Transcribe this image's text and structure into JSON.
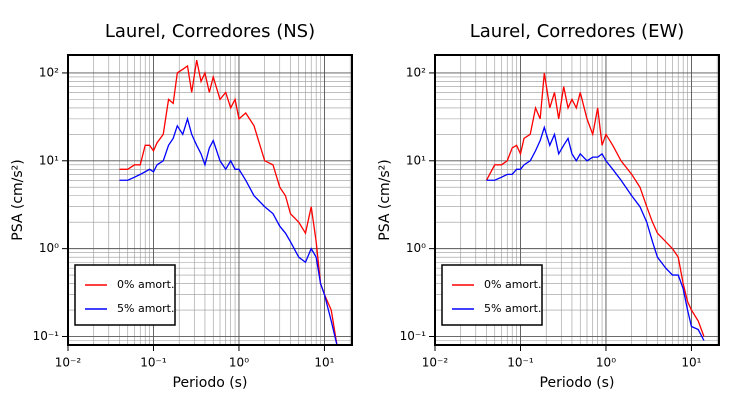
{
  "chart_data": [
    {
      "type": "line",
      "title": "Laurel, Corredores (NS)",
      "x_label": "Periodo (s)",
      "y_label": "PSA (cm/s²)",
      "x_scale": "log",
      "y_scale": "log",
      "grid": true,
      "minor_grid": true,
      "legend_position": "lower left",
      "xlim": [
        0.01,
        21
      ],
      "ylim": [
        0.08,
        160
      ],
      "xticks": [
        {
          "value": 0.01,
          "label": "10⁻²"
        },
        {
          "value": 0.1,
          "label": "10⁻¹"
        },
        {
          "value": 1,
          "label": "10⁰"
        },
        {
          "value": 10,
          "label": "10¹"
        }
      ],
      "yticks": [
        {
          "value": 0.1,
          "label": "10⁻¹"
        },
        {
          "value": 1,
          "label": "10⁰"
        },
        {
          "value": 10,
          "label": "10¹"
        },
        {
          "value": 100,
          "label": "10²"
        }
      ],
      "x": [
        0.04,
        0.05,
        0.06,
        0.07,
        0.08,
        0.09,
        0.1,
        0.11,
        0.13,
        0.15,
        0.17,
        0.19,
        0.22,
        0.25,
        0.28,
        0.32,
        0.36,
        0.4,
        0.45,
        0.5,
        0.6,
        0.7,
        0.8,
        0.9,
        1.0,
        1.2,
        1.5,
        2,
        2.5,
        3,
        3.5,
        4,
        5,
        6,
        7,
        8,
        9,
        10,
        12,
        14
      ],
      "series": [
        {
          "name": "0% amort.",
          "color": "#ff0000",
          "values": [
            8,
            8,
            9,
            9,
            15,
            15,
            13,
            16,
            20,
            50,
            45,
            100,
            110,
            120,
            60,
            140,
            80,
            100,
            60,
            90,
            50,
            60,
            40,
            50,
            30,
            35,
            25,
            10,
            9,
            5,
            4,
            2.5,
            2,
            1.5,
            3,
            1.2,
            0.4,
            0.3,
            0.2,
            0.08
          ]
        },
        {
          "name": "5% amort.",
          "color": "#0000ff",
          "values": [
            6,
            6,
            6.5,
            7,
            7.5,
            8,
            7.5,
            9,
            10,
            15,
            18,
            25,
            20,
            30,
            20,
            15,
            12,
            9,
            14,
            17,
            10,
            8,
            10,
            8,
            8,
            6,
            4,
            3,
            2.5,
            1.8,
            1.5,
            1.2,
            0.8,
            0.7,
            1.0,
            0.8,
            0.4,
            0.3,
            0.15,
            0.08
          ]
        }
      ]
    },
    {
      "type": "line",
      "title": "Laurel, Corredores (EW)",
      "x_label": "Periodo (s)",
      "y_label": "PSA (cm/s²)",
      "x_scale": "log",
      "y_scale": "log",
      "grid": true,
      "minor_grid": true,
      "legend_position": "lower left",
      "xlim": [
        0.01,
        21
      ],
      "ylim": [
        0.08,
        160
      ],
      "xticks": [
        {
          "value": 0.01,
          "label": "10⁻²"
        },
        {
          "value": 0.1,
          "label": "10⁻¹"
        },
        {
          "value": 1,
          "label": "10⁰"
        },
        {
          "value": 10,
          "label": "10¹"
        }
      ],
      "yticks": [
        {
          "value": 0.1,
          "label": "10⁻¹"
        },
        {
          "value": 1,
          "label": "10⁰"
        },
        {
          "value": 10,
          "label": "10¹"
        },
        {
          "value": 100,
          "label": "10²"
        }
      ],
      "x": [
        0.04,
        0.05,
        0.06,
        0.07,
        0.08,
        0.09,
        0.1,
        0.11,
        0.13,
        0.15,
        0.17,
        0.19,
        0.22,
        0.25,
        0.28,
        0.32,
        0.36,
        0.4,
        0.45,
        0.5,
        0.6,
        0.7,
        0.8,
        0.9,
        1.0,
        1.2,
        1.5,
        2,
        2.5,
        3,
        3.5,
        4,
        5,
        6,
        7,
        8,
        9,
        10,
        12,
        14
      ],
      "series": [
        {
          "name": "0% amort.",
          "color": "#ff0000",
          "values": [
            6,
            9,
            9,
            10,
            14,
            15,
            12,
            18,
            20,
            40,
            30,
            100,
            40,
            60,
            30,
            70,
            40,
            50,
            40,
            60,
            30,
            20,
            40,
            15,
            20,
            15,
            10,
            7,
            5,
            3,
            2,
            1.5,
            1.2,
            1.0,
            0.8,
            0.4,
            0.25,
            0.2,
            0.15,
            0.1
          ]
        },
        {
          "name": "5% amort.",
          "color": "#0000ff",
          "values": [
            6,
            6,
            6.5,
            7,
            7,
            8,
            8,
            9,
            10,
            13,
            17,
            24,
            15,
            20,
            12,
            15,
            18,
            12,
            10,
            12,
            10,
            11,
            11,
            12,
            10,
            8,
            6,
            4,
            3,
            2,
            1.2,
            0.8,
            0.6,
            0.5,
            0.5,
            0.35,
            0.2,
            0.13,
            0.12,
            0.09
          ]
        }
      ]
    }
  ]
}
